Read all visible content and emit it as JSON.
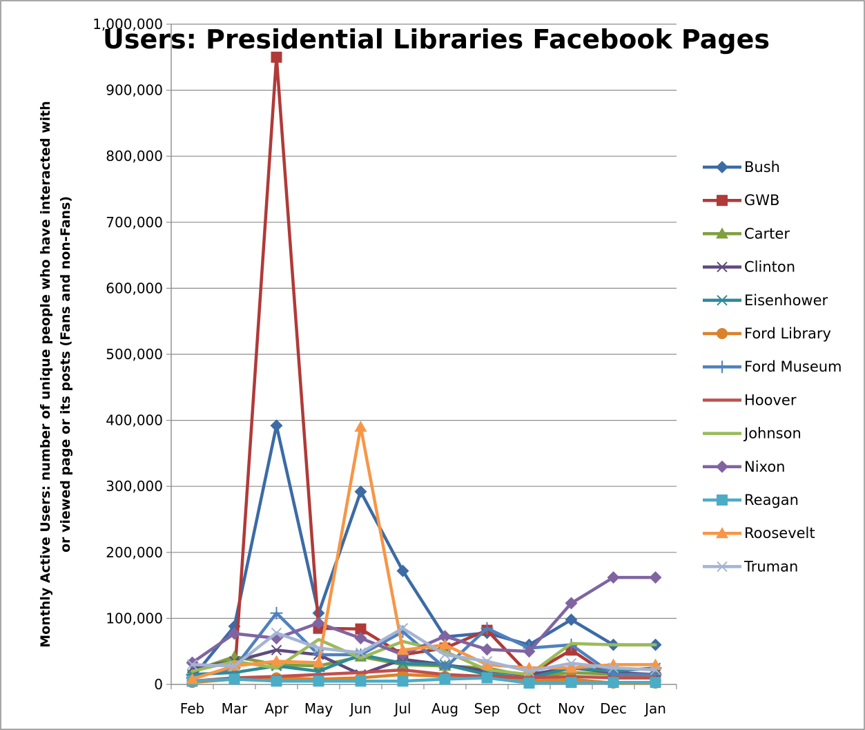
{
  "chart_data": {
    "type": "line",
    "title": "Users: Presidential Libraries Facebook Pages",
    "ylabel_lines": [
      "Monthly Active Users: number of unique people who have interacted with",
      "or viewed page or its posts (Fans and non-Fans)"
    ],
    "xlabel": "",
    "categories": [
      "Feb",
      "Mar",
      "Apr",
      "May",
      "Jun",
      "Jul",
      "Aug",
      "Sep",
      "Oct",
      "Nov",
      "Dec",
      "Jan"
    ],
    "ylim": [
      0,
      1000000
    ],
    "yticks": [
      0,
      100000,
      200000,
      300000,
      400000,
      500000,
      600000,
      700000,
      800000,
      900000,
      1000000
    ],
    "ytick_labels": [
      "0",
      "100,000",
      "200,000",
      "300,000",
      "400,000",
      "500,000",
      "600,000",
      "700,000",
      "800,000",
      "900,000",
      "1,000,000"
    ],
    "grid": "horizontal major gridlines",
    "legend_position": "right",
    "series": [
      {
        "name": "Bush",
        "color": "#3c6ba5",
        "marker": "diamond",
        "values": [
          10000,
          88000,
          392000,
          108000,
          292000,
          172000,
          72000,
          78000,
          60000,
          98000,
          60000,
          60000
        ]
      },
      {
        "name": "GWB",
        "color": "#b03a38",
        "marker": "square",
        "values": [
          5000,
          8000,
          950000,
          85000,
          84000,
          45000,
          55000,
          82000,
          15000,
          52000,
          10000,
          10000
        ]
      },
      {
        "name": "Carter",
        "color": "#7f9f3f",
        "marker": "triangle",
        "values": [
          20000,
          42000,
          30000,
          28000,
          42000,
          30000,
          28000,
          25000,
          12000,
          18000,
          15000,
          12000
        ]
      },
      {
        "name": "Clinton",
        "color": "#5f4a7e",
        "marker": "x",
        "values": [
          25000,
          35000,
          52000,
          45000,
          15000,
          38000,
          30000,
          20000,
          15000,
          25000,
          18000,
          15000
        ]
      },
      {
        "name": "Eisenhower",
        "color": "#2e8a99",
        "marker": "asterisk",
        "values": [
          15000,
          18000,
          28000,
          20000,
          45000,
          32000,
          30000,
          15000,
          10000,
          25000,
          20000,
          25000
        ]
      },
      {
        "name": "Ford Library",
        "color": "#d9822b",
        "marker": "circle",
        "values": [
          3000,
          8000,
          10000,
          8000,
          10000,
          15000,
          12000,
          10000,
          5000,
          8000,
          2000,
          2000
        ]
      },
      {
        "name": "Ford Museum",
        "color": "#4f81bd",
        "marker": "plus",
        "values": [
          10000,
          25000,
          108000,
          45000,
          45000,
          80000,
          25000,
          85000,
          55000,
          60000,
          15000,
          15000
        ]
      },
      {
        "name": "Hoover",
        "color": "#c0504d",
        "marker": "none",
        "values": [
          5000,
          10000,
          12000,
          15000,
          18000,
          22000,
          15000,
          12000,
          10000,
          12000,
          10000,
          10000
        ]
      },
      {
        "name": "Johnson",
        "color": "#9bbb59",
        "marker": "none",
        "values": [
          20000,
          35000,
          25000,
          68000,
          40000,
          65000,
          50000,
          22000,
          15000,
          62000,
          60000,
          60000
        ]
      },
      {
        "name": "Nixon",
        "color": "#8064a2",
        "marker": "diamond",
        "values": [
          33000,
          77000,
          70000,
          93000,
          70000,
          45000,
          73000,
          53000,
          50000,
          123000,
          162000,
          162000
        ]
      },
      {
        "name": "Reagan",
        "color": "#4bacc6",
        "marker": "square",
        "values": [
          5000,
          8000,
          5000,
          5000,
          5000,
          5000,
          8000,
          10000,
          2000,
          3000,
          3000,
          3000
        ]
      },
      {
        "name": "Roosevelt",
        "color": "#f79646",
        "marker": "triangle",
        "values": [
          8000,
          28000,
          35000,
          33000,
          390000,
          52000,
          60000,
          30000,
          25000,
          25000,
          30000,
          30000
        ]
      },
      {
        "name": "Truman",
        "color": "#a5b4d4",
        "marker": "x",
        "values": [
          30000,
          28000,
          78000,
          55000,
          48000,
          85000,
          45000,
          35000,
          20000,
          32000,
          25000,
          22000
        ]
      }
    ]
  }
}
